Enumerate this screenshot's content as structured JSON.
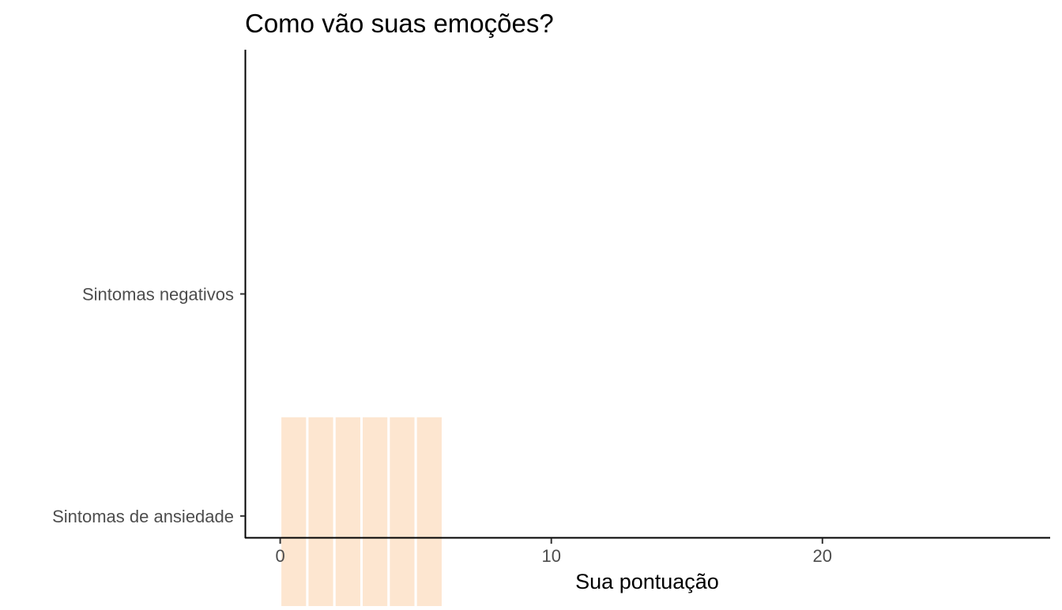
{
  "chart_data": {
    "type": "bar",
    "orientation": "horizontal",
    "stacked": true,
    "title": "Como vão suas emoções?",
    "xlabel": "Sua pontuação",
    "ylabel": "",
    "xlim": [
      -1.3,
      28.4
    ],
    "x_ticks": [
      "0",
      "10",
      "20"
    ],
    "x_tick_values": [
      0,
      10,
      20
    ],
    "categories": [
      "Sintomas negativos",
      "Sintomas de ansiedade"
    ],
    "segments": [
      {
        "category": "Sintomas de ansiedade",
        "start": 0,
        "end": 1
      },
      {
        "category": "Sintomas de ansiedade",
        "start": 1,
        "end": 2
      },
      {
        "category": "Sintomas de ansiedade",
        "start": 2,
        "end": 3
      },
      {
        "category": "Sintomas de ansiedade",
        "start": 3,
        "end": 4
      },
      {
        "category": "Sintomas de ansiedade",
        "start": 4,
        "end": 5
      },
      {
        "category": "Sintomas de ansiedade",
        "start": 5,
        "end": 6
      }
    ],
    "totals": {
      "Sintomas negativos": 0,
      "Sintomas de ansiedade": 6
    },
    "bar_color": "#fde6d0",
    "segment_border_color": "#ffffff",
    "axis_color": "#000000",
    "grid": false,
    "legend": "none"
  }
}
